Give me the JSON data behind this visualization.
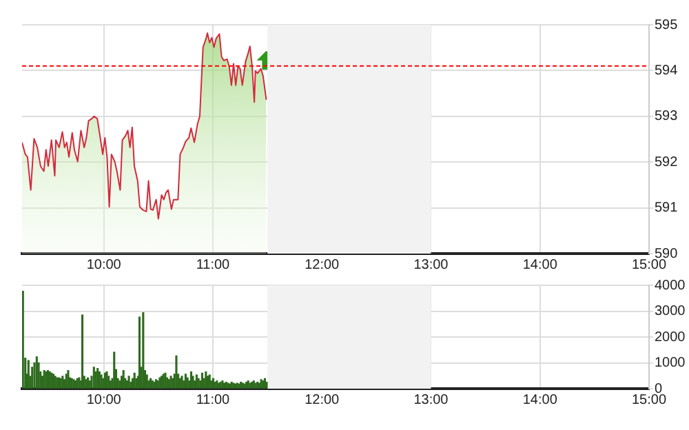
{
  "chart_data": [
    {
      "type": "area",
      "color": "#d42a3c",
      "x": [
        9.25,
        9.28,
        9.3,
        9.33,
        9.36,
        9.39,
        9.42,
        9.45,
        9.47,
        9.49,
        9.52,
        9.55,
        9.56,
        9.59,
        9.62,
        9.64,
        9.66,
        9.68,
        9.71,
        9.73,
        9.76,
        9.79,
        9.82,
        9.84,
        9.86,
        9.89,
        9.91,
        9.94,
        9.96,
        9.99,
        10.01,
        10.03,
        10.05,
        10.07,
        10.1,
        10.12,
        10.15,
        10.17,
        10.2,
        10.22,
        10.24,
        10.26,
        10.28,
        10.31,
        10.33,
        10.36,
        10.39,
        10.41,
        10.43,
        10.45,
        10.48,
        10.5,
        10.53,
        10.55,
        10.57,
        10.59,
        10.62,
        10.64,
        10.68,
        10.7,
        10.73,
        10.75,
        10.78,
        10.8,
        10.83,
        10.86,
        10.88,
        10.89,
        10.91,
        10.94,
        10.95,
        10.97,
        10.99,
        11.01,
        11.03,
        11.06,
        11.08,
        11.1,
        11.13,
        11.15,
        11.17,
        11.19,
        11.21,
        11.23,
        11.25,
        11.27,
        11.3,
        11.32,
        11.34,
        11.36,
        11.38,
        11.39,
        11.41,
        11.44,
        11.46,
        11.49
      ],
      "values": [
        592.43,
        592.17,
        592.11,
        591.39,
        592.51,
        592.32,
        591.91,
        591.8,
        592.27,
        591.91,
        592.48,
        591.7,
        592.48,
        592.32,
        592.66,
        592.32,
        592.43,
        592.11,
        592.64,
        592.27,
        592.01,
        592.69,
        592.32,
        592.53,
        592.9,
        592.95,
        593.0,
        592.95,
        592.64,
        592.17,
        592.53,
        592.11,
        591.02,
        592.17,
        592.01,
        591.8,
        591.39,
        592.48,
        592.58,
        592.69,
        592.32,
        592.76,
        591.91,
        591.59,
        591.02,
        590.95,
        590.92,
        591.59,
        590.97,
        590.95,
        591.18,
        590.76,
        591.28,
        591.18,
        591.33,
        591.39,
        590.97,
        591.18,
        591.18,
        592.17,
        592.32,
        592.45,
        592.53,
        592.74,
        592.43,
        592.84,
        593.0,
        593.52,
        594.51,
        594.72,
        594.82,
        594.61,
        594.72,
        594.51,
        594.7,
        594.8,
        594.3,
        594.22,
        594.25,
        594.09,
        593.68,
        594.15,
        593.68,
        594.09,
        594.04,
        593.68,
        594.2,
        594.35,
        594.53,
        594.09,
        593.31,
        593.99,
        593.94,
        594.04,
        593.89,
        593.36
      ],
      "xlim": [
        9.25,
        15
      ],
      "xticks": [
        {
          "value": 10,
          "label": "10:00"
        },
        {
          "value": 11,
          "label": "11:00"
        },
        {
          "value": 12,
          "label": "12:00"
        },
        {
          "value": 13,
          "label": "13:00"
        },
        {
          "value": 14,
          "label": "14:00"
        },
        {
          "value": 15,
          "label": "15:00"
        }
      ],
      "ylim": [
        590,
        595
      ],
      "yticks": [
        590,
        591,
        592,
        593,
        594,
        595
      ],
      "grid": true,
      "ref_lines": [
        {
          "axis": "y",
          "value": 594.1,
          "color": "#ff0000",
          "line_style": "dashed"
        }
      ],
      "bands": [
        {
          "axis": "x",
          "from": 11.5,
          "to": 13,
          "color": "#f2f2f2"
        }
      ]
    },
    {
      "type": "bar",
      "color": "#2e6b1e",
      "x": [
        9.258,
        9.28,
        9.292,
        9.309,
        9.326,
        9.343,
        9.364,
        9.385,
        9.402,
        9.419,
        9.436,
        9.453,
        9.47,
        9.487,
        9.504,
        9.52,
        9.537,
        9.554,
        9.571,
        9.588,
        9.605,
        9.622,
        9.639,
        9.656,
        9.673,
        9.689,
        9.706,
        9.723,
        9.74,
        9.757,
        9.774,
        9.791,
        9.803,
        9.82,
        9.837,
        9.854,
        9.871,
        9.888,
        9.909,
        9.926,
        9.943,
        9.96,
        9.977,
        9.994,
        10.011,
        10.027,
        10.044,
        10.061,
        10.078,
        10.095,
        10.112,
        10.129,
        10.146,
        10.163,
        10.18,
        10.196,
        10.213,
        10.23,
        10.247,
        10.264,
        10.281,
        10.298,
        10.315,
        10.327,
        10.344,
        10.361,
        10.378,
        10.395,
        10.412,
        10.429,
        10.446,
        10.463,
        10.479,
        10.496,
        10.513,
        10.53,
        10.547,
        10.564,
        10.581,
        10.598,
        10.615,
        10.632,
        10.648,
        10.665,
        10.682,
        10.699,
        10.716,
        10.733,
        10.75,
        10.767,
        10.784,
        10.801,
        10.817,
        10.834,
        10.851,
        10.868,
        10.885,
        10.902,
        10.919,
        10.936,
        10.953,
        10.97,
        10.986,
        11.003,
        11.02,
        11.037,
        11.054,
        11.071,
        11.088,
        11.105,
        11.122,
        11.139,
        11.155,
        11.172,
        11.189,
        11.206,
        11.223,
        11.24,
        11.257,
        11.274,
        11.291,
        11.308,
        11.324,
        11.341,
        11.358,
        11.375,
        11.392,
        11.409,
        11.426,
        11.443,
        11.46,
        11.477,
        11.493
      ],
      "values": [
        3770,
        1180,
        560,
        1090,
        480,
        830,
        1000,
        1230,
        1000,
        650,
        480,
        700,
        650,
        700,
        650,
        600,
        560,
        480,
        420,
        420,
        390,
        480,
        350,
        560,
        700,
        420,
        390,
        350,
        300,
        390,
        420,
        300,
        2850,
        480,
        350,
        420,
        300,
        480,
        830,
        650,
        780,
        650,
        530,
        390,
        600,
        650,
        480,
        300,
        390,
        1410,
        740,
        390,
        300,
        480,
        700,
        390,
        300,
        480,
        250,
        390,
        600,
        390,
        480,
        2770,
        830,
        2940,
        700,
        530,
        300,
        390,
        300,
        250,
        350,
        300,
        420,
        480,
        560,
        600,
        420,
        350,
        480,
        390,
        560,
        1270,
        560,
        390,
        480,
        300,
        560,
        420,
        300,
        650,
        480,
        300,
        530,
        390,
        300,
        600,
        390,
        650,
        480,
        530,
        300,
        390,
        250,
        300,
        210,
        250,
        300,
        210,
        250,
        210,
        180,
        250,
        210,
        180,
        210,
        180,
        250,
        210,
        180,
        250,
        300,
        210,
        250,
        300,
        210,
        250,
        210,
        350,
        300,
        390,
        250
      ],
      "xlim": [
        9.25,
        15
      ],
      "xticks": [
        {
          "value": 10,
          "label": "10:00"
        },
        {
          "value": 11,
          "label": "11:00"
        },
        {
          "value": 12,
          "label": "12:00"
        },
        {
          "value": 13,
          "label": "13:00"
        },
        {
          "value": 14,
          "label": "14:00"
        },
        {
          "value": 15,
          "label": "15:00"
        }
      ],
      "ylim": [
        0,
        4000
      ],
      "yticks": [
        0,
        1000,
        2000,
        3000,
        4000
      ],
      "grid": true,
      "bands": [
        {
          "axis": "x",
          "from": 11.5,
          "to": 13,
          "color": "#f2f2f2"
        }
      ]
    }
  ]
}
